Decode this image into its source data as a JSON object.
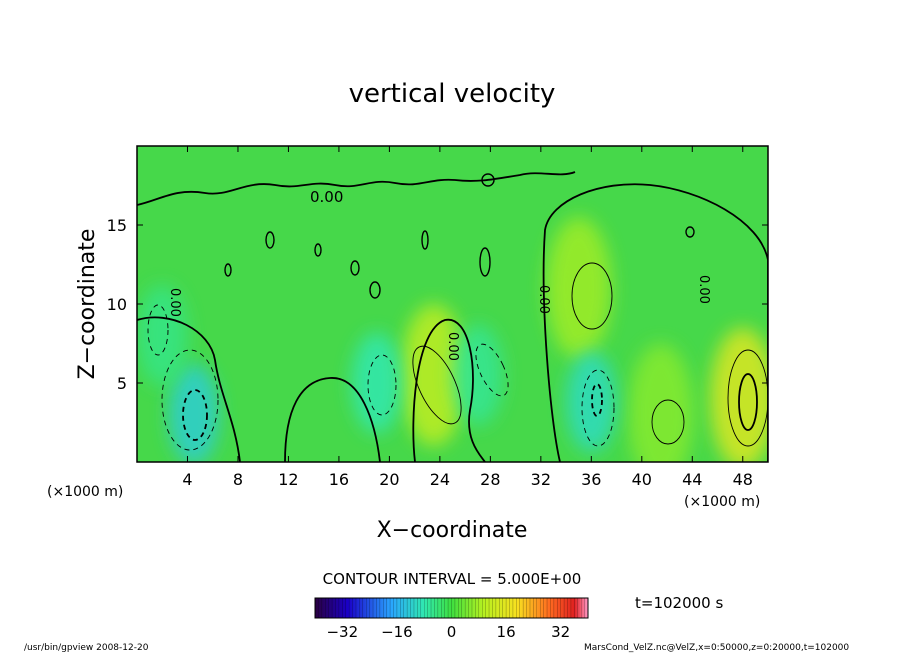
{
  "chart_data": {
    "type": "heatmap",
    "title": "vertical velocity",
    "xlabel": "X−coordinate",
    "ylabel": "Z−coordinate",
    "x_unit": "(×1000 m)",
    "y_unit": "(×1000 m)",
    "xlim": [
      0,
      50
    ],
    "ylim": [
      0,
      20
    ],
    "x_ticks": [
      4,
      8,
      12,
      16,
      20,
      24,
      28,
      32,
      36,
      40,
      44,
      48
    ],
    "y_ticks": [
      5,
      10,
      15
    ],
    "contour_interval": "CONTOUR INTERVAL = 5.000E+00",
    "contour_zero_label": "0.00",
    "time_label": "t=102000  s",
    "colorbar": {
      "range": [
        -40,
        40
      ],
      "ticks": [
        "−32",
        "−16",
        "0",
        "16",
        "32"
      ],
      "tick_values": [
        -32,
        -16,
        0,
        16,
        32
      ]
    },
    "features": [
      {
        "x": 23.5,
        "z": 5.5,
        "value": 11,
        "sign": "positive"
      },
      {
        "x": 35,
        "z": 11,
        "value": 8,
        "sign": "positive"
      },
      {
        "x": 48,
        "z": 4,
        "value": 15,
        "sign": "positive"
      },
      {
        "x": 41.5,
        "z": 3,
        "value": 6,
        "sign": "positive"
      },
      {
        "x": 4.5,
        "z": 3,
        "value": -12,
        "sign": "negative"
      },
      {
        "x": 36,
        "z": 3.8,
        "value": -10,
        "sign": "negative"
      },
      {
        "x": 19,
        "z": 5,
        "value": -8,
        "sign": "negative"
      },
      {
        "x": 27,
        "z": 5.5,
        "value": -6,
        "sign": "negative"
      },
      {
        "x": 2,
        "z": 8,
        "value": -5,
        "sign": "negative"
      }
    ]
  },
  "footer": {
    "left": "/usr/bin/gpview   2008-12-20",
    "right": "MarsCond_VelZ.nc@VelZ,x=0:50000,z=0:20000,t=102000"
  }
}
